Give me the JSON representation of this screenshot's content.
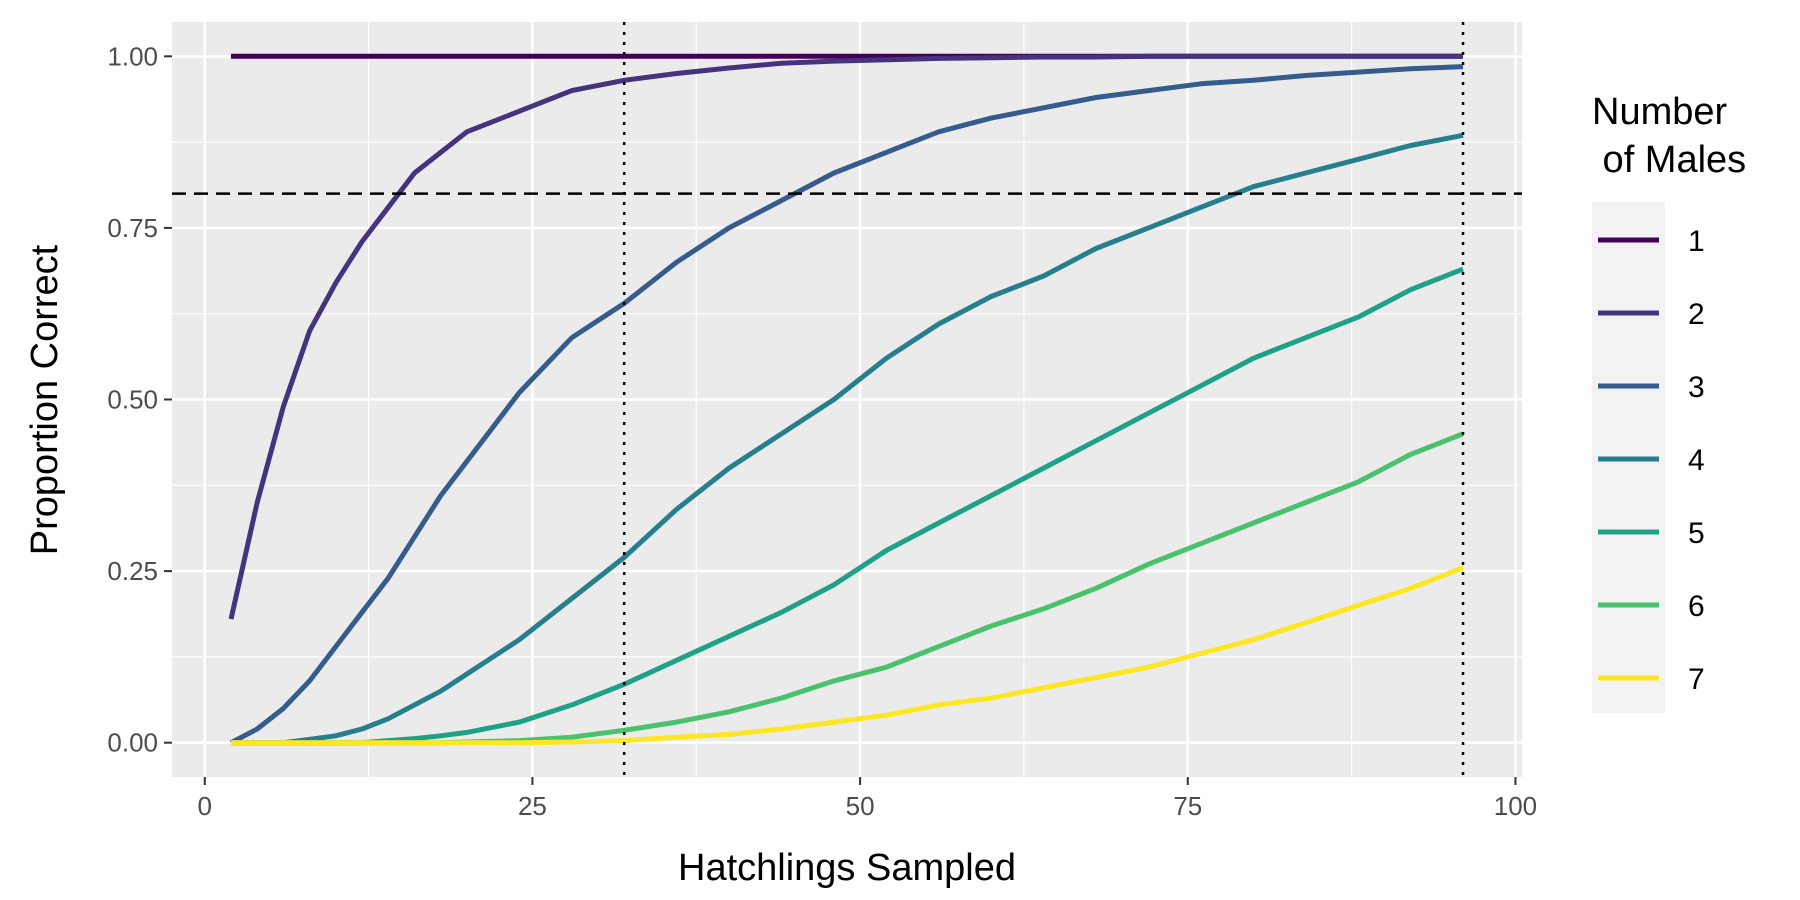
{
  "chart_data": {
    "type": "line",
    "xlabel": "Hatchlings Sampled",
    "ylabel": "Proportion Correct",
    "xlim": [
      -2.5,
      100.5
    ],
    "ylim": [
      -0.05,
      1.05
    ],
    "x_ticks": [
      0,
      25,
      50,
      75,
      100
    ],
    "x_tick_labels": [
      "0",
      "25",
      "50",
      "75",
      "100"
    ],
    "y_ticks": [
      0,
      0.25,
      0.5,
      0.75,
      1.0
    ],
    "y_tick_labels": [
      "0.00",
      "0.25",
      "0.50",
      "0.75",
      "1.00"
    ],
    "grid": true,
    "legend": {
      "title_lines": [
        "Number",
        " of Males"
      ],
      "position": "right"
    },
    "reference_lines": [
      {
        "orientation": "horizontal",
        "value": 0.8,
        "style": "dashed"
      },
      {
        "orientation": "vertical",
        "value": 32,
        "style": "dotted"
      },
      {
        "orientation": "vertical",
        "value": 96,
        "style": "dotted"
      }
    ],
    "x": [
      2,
      4,
      6,
      8,
      10,
      12,
      14,
      16,
      18,
      20,
      24,
      28,
      32,
      36,
      40,
      44,
      48,
      52,
      56,
      60,
      64,
      68,
      72,
      76,
      80,
      84,
      88,
      92,
      96
    ],
    "series": [
      {
        "name": "1",
        "color": "#440154",
        "values": [
          1,
          1,
          1,
          1,
          1,
          1,
          1,
          1,
          1,
          1,
          1,
          1,
          1,
          1,
          1,
          1,
          1,
          1,
          1,
          1,
          1,
          1,
          1,
          1,
          1,
          1,
          1,
          1,
          1
        ]
      },
      {
        "name": "2",
        "color": "#46337E",
        "values": [
          0.18,
          0.35,
          0.49,
          0.6,
          0.67,
          0.73,
          0.78,
          0.83,
          0.86,
          0.89,
          0.92,
          0.95,
          0.965,
          0.975,
          0.983,
          0.99,
          0.993,
          0.995,
          0.997,
          0.998,
          0.999,
          0.999,
          1.0,
          1.0,
          1.0,
          1.0,
          1.0,
          1.0,
          1.0
        ]
      },
      {
        "name": "3",
        "color": "#365C8D",
        "values": [
          0.0,
          0.02,
          0.05,
          0.09,
          0.14,
          0.19,
          0.24,
          0.3,
          0.36,
          0.41,
          0.51,
          0.59,
          0.64,
          0.7,
          0.75,
          0.79,
          0.83,
          0.86,
          0.89,
          0.91,
          0.925,
          0.94,
          0.95,
          0.96,
          0.965,
          0.972,
          0.977,
          0.982,
          0.985
        ]
      },
      {
        "name": "4",
        "color": "#277F8E",
        "values": [
          0.0,
          0.0,
          0.0,
          0.005,
          0.01,
          0.02,
          0.035,
          0.055,
          0.075,
          0.1,
          0.15,
          0.21,
          0.27,
          0.34,
          0.4,
          0.45,
          0.5,
          0.56,
          0.61,
          0.65,
          0.68,
          0.72,
          0.75,
          0.78,
          0.81,
          0.83,
          0.85,
          0.87,
          0.885
        ]
      },
      {
        "name": "5",
        "color": "#1FA187",
        "values": [
          0.0,
          0.0,
          0.0,
          0.0,
          0.0,
          0.0,
          0.003,
          0.006,
          0.01,
          0.015,
          0.03,
          0.055,
          0.085,
          0.12,
          0.155,
          0.19,
          0.23,
          0.28,
          0.32,
          0.36,
          0.4,
          0.44,
          0.48,
          0.52,
          0.56,
          0.59,
          0.62,
          0.66,
          0.69
        ]
      },
      {
        "name": "6",
        "color": "#4AC16D",
        "values": [
          0.0,
          0.0,
          0.0,
          0.0,
          0.0,
          0.0,
          0.0,
          0.0,
          0.0,
          0.001,
          0.003,
          0.008,
          0.018,
          0.03,
          0.045,
          0.065,
          0.09,
          0.11,
          0.14,
          0.17,
          0.195,
          0.225,
          0.26,
          0.29,
          0.32,
          0.35,
          0.38,
          0.42,
          0.45
        ]
      },
      {
        "name": "7",
        "color": "#FDE725",
        "values": [
          0.0,
          0.0,
          0.0,
          0.0,
          0.0,
          0.0,
          0.0,
          0.0,
          0.0,
          0.0,
          0.0,
          0.001,
          0.003,
          0.008,
          0.012,
          0.02,
          0.03,
          0.04,
          0.055,
          0.065,
          0.08,
          0.095,
          0.11,
          0.13,
          0.15,
          0.175,
          0.2,
          0.225,
          0.255
        ]
      }
    ]
  }
}
